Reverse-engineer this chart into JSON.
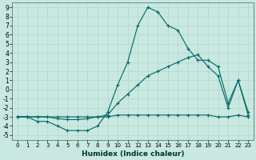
{
  "xlabel": "Humidex (Indice chaleur)",
  "bg_color": "#c8e8e0",
  "grid_color": "#b0d8d0",
  "line_color": "#006666",
  "xlim": [
    -0.5,
    23.5
  ],
  "ylim": [
    -5.5,
    9.5
  ],
  "xticks": [
    0,
    1,
    2,
    3,
    4,
    5,
    6,
    7,
    8,
    9,
    10,
    11,
    12,
    13,
    14,
    15,
    16,
    17,
    18,
    19,
    20,
    21,
    22,
    23
  ],
  "yticks": [
    -5,
    -4,
    -3,
    -2,
    -1,
    0,
    1,
    2,
    3,
    4,
    5,
    6,
    7,
    8,
    9
  ],
  "series": [
    {
      "x": [
        0,
        1,
        2,
        3,
        4,
        5,
        6,
        7,
        8,
        9,
        10,
        11,
        12,
        13,
        14,
        15,
        16,
        17,
        18,
        19,
        20,
        21,
        22,
        23
      ],
      "y": [
        -3,
        -3,
        -3.5,
        -3.5,
        -4,
        -4.5,
        -4.5,
        -4.5,
        -4,
        -2.5,
        0.5,
        3,
        7,
        9,
        8.5,
        7,
        6.5,
        4.5,
        3.2,
        3.2,
        2.5,
        -1.5,
        1,
        -2.5
      ]
    },
    {
      "x": [
        0,
        1,
        2,
        3,
        4,
        5,
        6,
        7,
        8,
        9,
        10,
        11,
        12,
        13,
        14,
        15,
        16,
        17,
        18,
        19,
        20,
        21,
        22,
        23
      ],
      "y": [
        -3,
        -3,
        -3,
        -3,
        -3.2,
        -3.3,
        -3.3,
        -3.2,
        -3,
        -2.8,
        -1.5,
        -0.5,
        0.5,
        1.5,
        2,
        2.5,
        3,
        3.5,
        3.8,
        2.5,
        1.5,
        -2,
        1,
        -2.8
      ]
    },
    {
      "x": [
        0,
        1,
        2,
        3,
        4,
        5,
        6,
        7,
        8,
        9,
        10,
        11,
        12,
        13,
        14,
        15,
        16,
        17,
        18,
        19,
        20,
        21,
        22,
        23
      ],
      "y": [
        -3,
        -3,
        -3,
        -3,
        -3,
        -3,
        -3,
        -3,
        -3,
        -3,
        -2.8,
        -2.8,
        -2.8,
        -2.8,
        -2.8,
        -2.8,
        -2.8,
        -2.8,
        -2.8,
        -2.8,
        -3,
        -3,
        -2.8,
        -3
      ]
    }
  ]
}
